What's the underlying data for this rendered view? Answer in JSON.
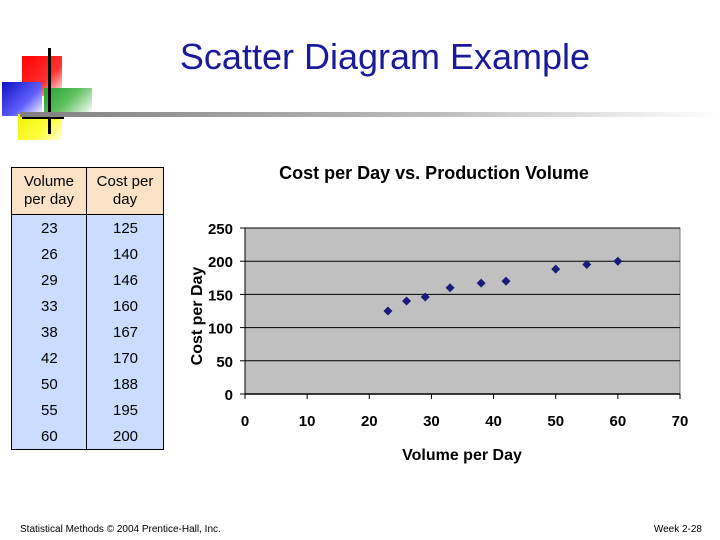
{
  "slide": {
    "title": "Scatter Diagram Example",
    "footer_left": "Statistical Methods © 2004 Prentice-Hall, Inc.",
    "footer_right": "Week 2-28"
  },
  "table": {
    "headers": [
      "Volume per day",
      "Cost per day"
    ],
    "rows": [
      [
        "23",
        "125"
      ],
      [
        "26",
        "140"
      ],
      [
        "29",
        "146"
      ],
      [
        "33",
        "160"
      ],
      [
        "38",
        "167"
      ],
      [
        "42",
        "170"
      ],
      [
        "50",
        "188"
      ],
      [
        "55",
        "195"
      ],
      [
        "60",
        "200"
      ]
    ]
  },
  "colors": {
    "title": "#1a1a9a",
    "plot_bg": "#c0c0c0",
    "marker": "#1a1a7a",
    "table_header_bg": "#fbe1c6",
    "table_body_bg": "#ccdcff"
  },
  "chart_data": {
    "type": "scatter",
    "title": "Cost per Day vs. Production Volume",
    "xlabel": "Volume per Day",
    "ylabel": "Cost per Day",
    "xlim": [
      0,
      70
    ],
    "ylim": [
      0,
      250
    ],
    "xticks": [
      0,
      10,
      20,
      30,
      40,
      50,
      60,
      70
    ],
    "yticks": [
      0,
      50,
      100,
      150,
      200,
      250
    ],
    "grid": "horizontal",
    "marker": "diamond",
    "series": [
      {
        "name": "Cost per day",
        "x": [
          23,
          26,
          29,
          33,
          38,
          42,
          50,
          55,
          60
        ],
        "y": [
          125,
          140,
          146,
          160,
          167,
          170,
          188,
          195,
          200
        ]
      }
    ]
  }
}
